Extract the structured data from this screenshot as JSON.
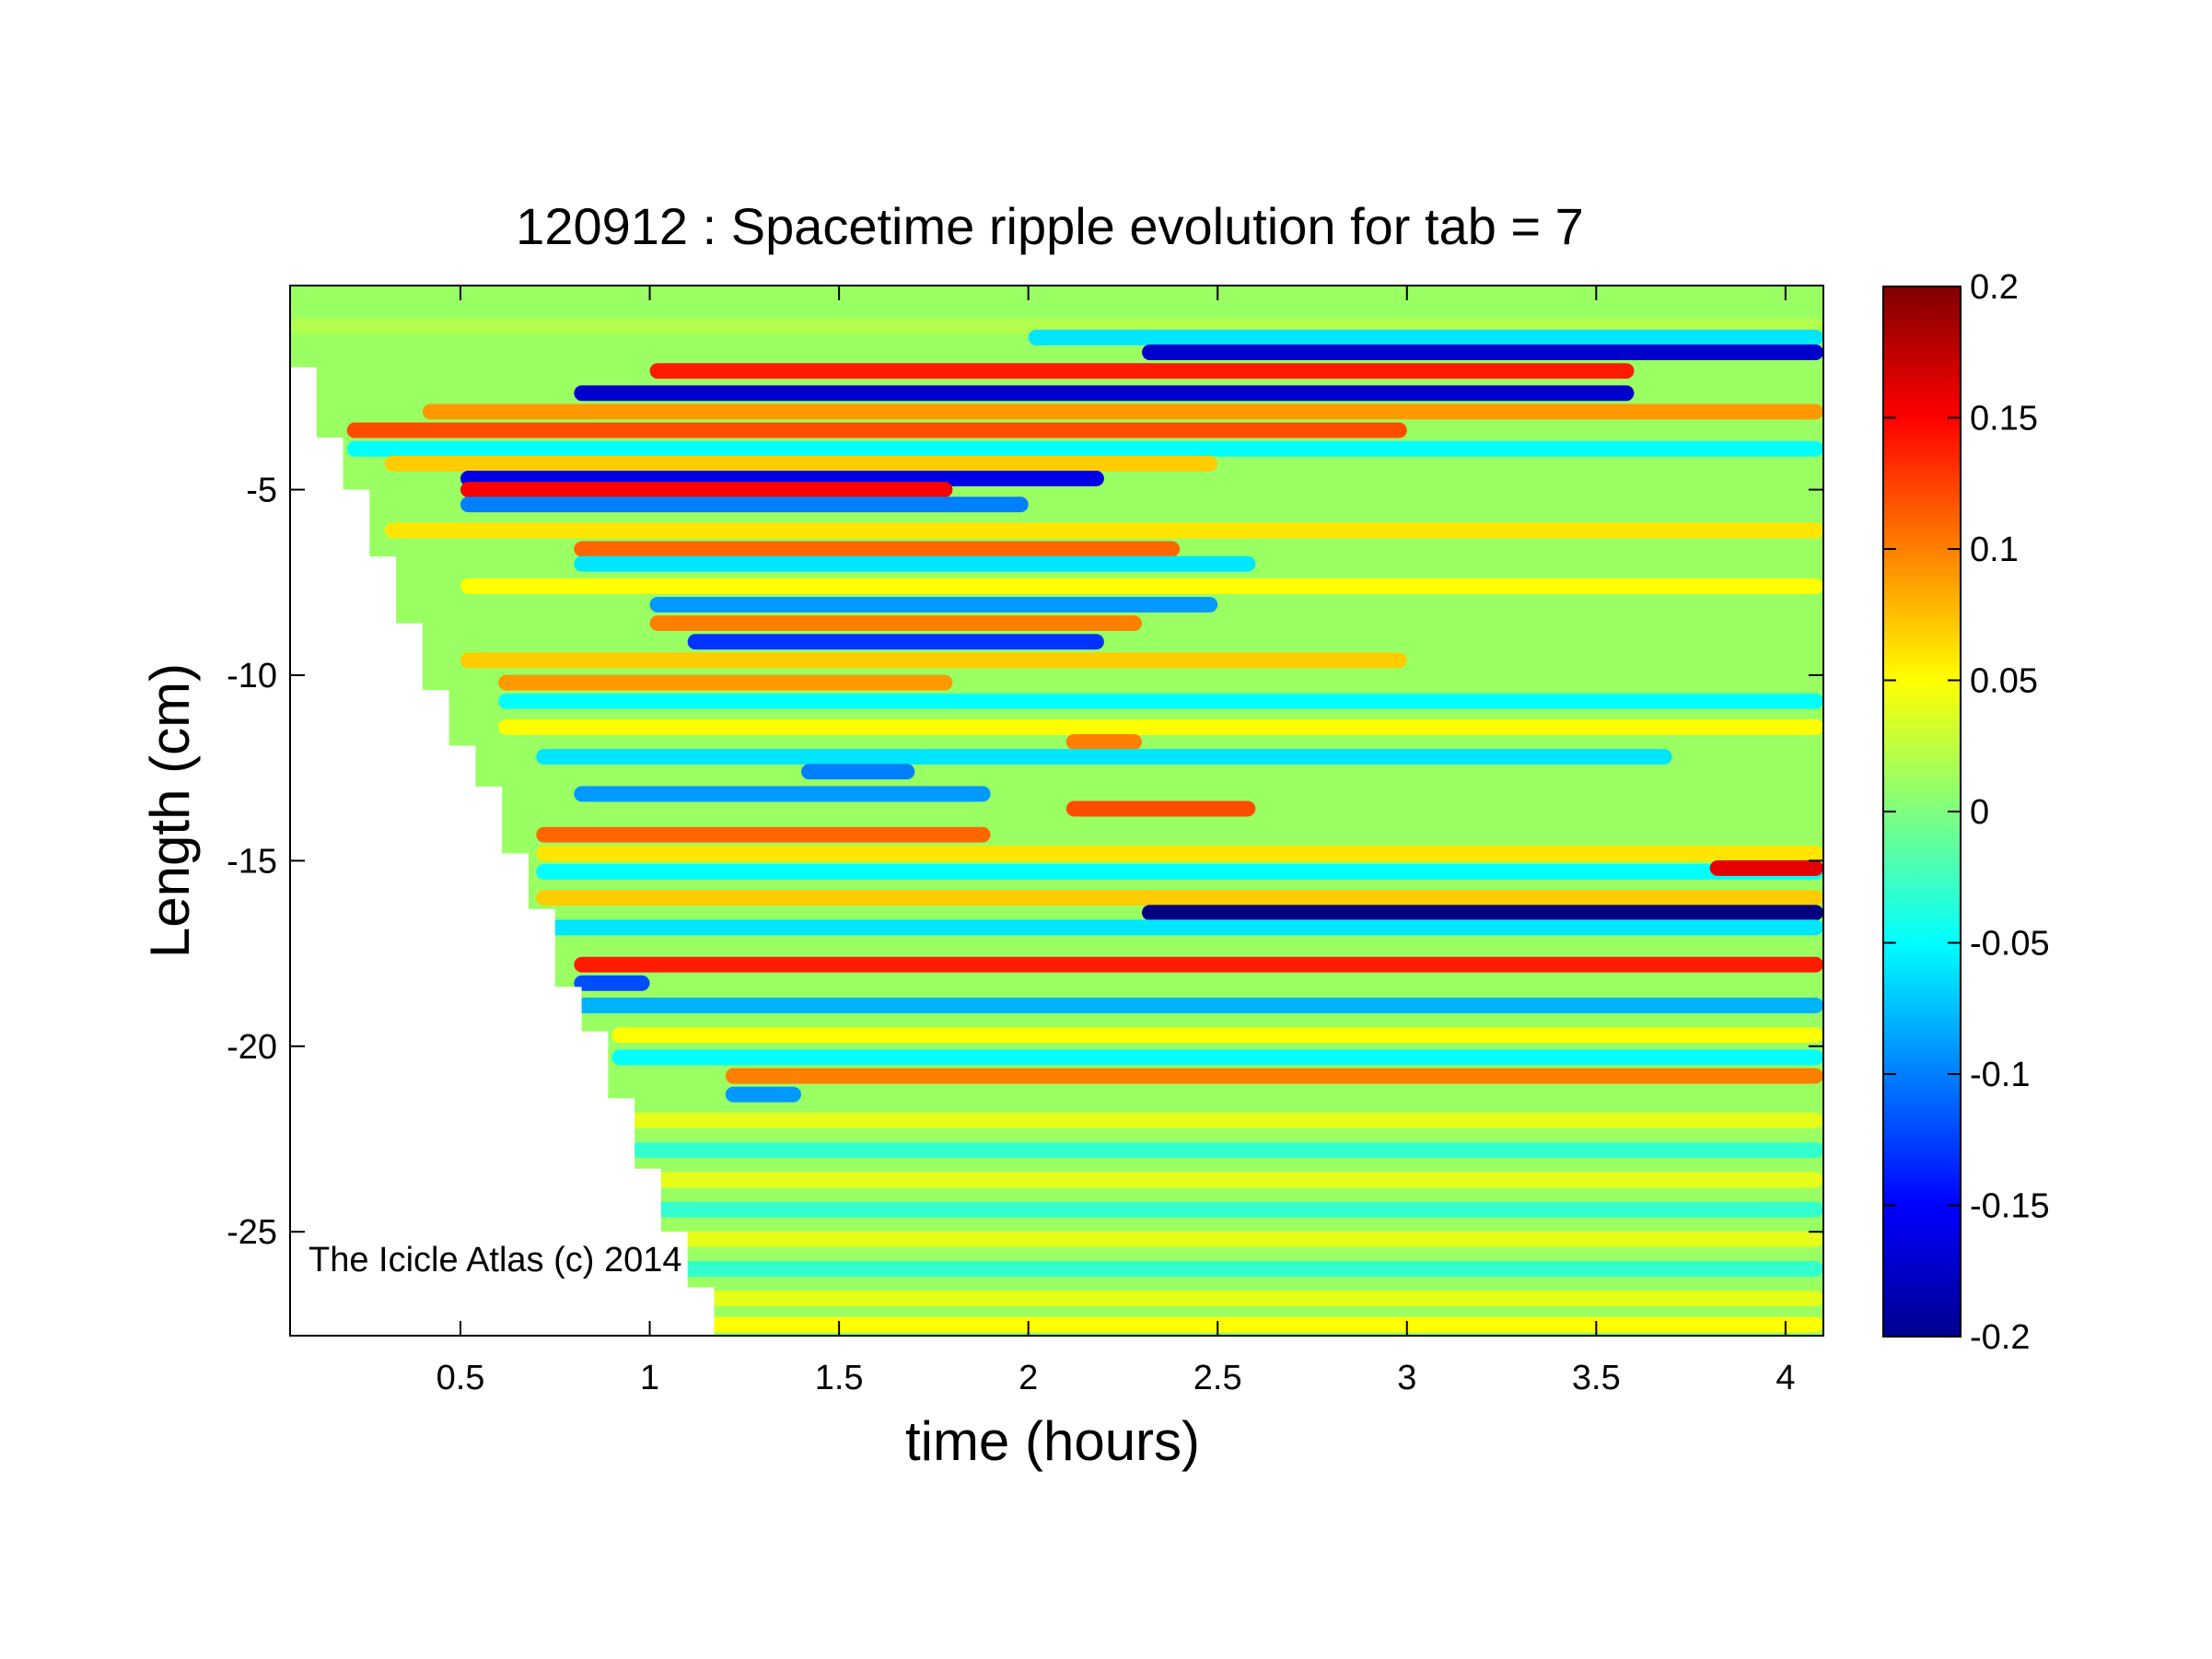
{
  "chart_data": {
    "type": "heatmap",
    "title": "120912 : Spacetime ripple evolution for tab = 7",
    "xlabel": "time (hours)",
    "ylabel": "Length (cm)",
    "xlim": [
      0.05,
      4.1
    ],
    "ylim": [
      -27.8,
      0.5
    ],
    "x_ticks": [
      0.5,
      1,
      1.5,
      2,
      2.5,
      3,
      3.5,
      4
    ],
    "x_tick_labels": [
      "0.5",
      "1",
      "1.5",
      "2",
      "2.5",
      "3",
      "3.5",
      "4"
    ],
    "y_ticks": [
      -5,
      -10,
      -15,
      -20,
      -25
    ],
    "y_tick_labels": [
      "-5",
      "-10",
      "-15",
      "-20",
      "-25"
    ],
    "colorbar": {
      "colormap": "jet",
      "clim": [
        -0.2,
        0.2
      ],
      "ticks": [
        0.2,
        0.15,
        0.1,
        0.05,
        0,
        -0.05,
        -0.1,
        -0.15,
        -0.2
      ],
      "tick_labels": [
        "0.2",
        "0.15",
        "0.1",
        "0.05",
        "0",
        "-0.05",
        "-0.1",
        "-0.15",
        "-0.2"
      ]
    },
    "data_boundary": {
      "description_note": "",
      "times": [
        0.05,
        0.12,
        0.19,
        0.26,
        0.33,
        0.4,
        0.47,
        0.54,
        0.61,
        0.68,
        0.75,
        0.82,
        0.89,
        0.96,
        1.03,
        1.1,
        1.17
      ],
      "min_length": [
        -1.7,
        -3.6,
        -5.0,
        -6.8,
        -8.6,
        -10.4,
        -11.9,
        -13.0,
        -14.8,
        -16.3,
        -18.4,
        -19.6,
        -21.4,
        -23.3,
        -25.0,
        -26.5,
        -27.8
      ]
    },
    "bands": [
      {
        "y": -0.6,
        "amp": 0.02,
        "t0": 0.05,
        "t1": 4.1
      },
      {
        "y": -0.9,
        "amp": -0.06,
        "t0": 2.0,
        "t1": 4.1
      },
      {
        "y": -1.3,
        "amp": -0.17,
        "t0": 2.3,
        "t1": 4.1
      },
      {
        "y": -1.8,
        "amp": 0.14,
        "t0": 1.0,
        "t1": 3.6
      },
      {
        "y": -2.4,
        "amp": -0.17,
        "t0": 0.8,
        "t1": 3.6
      },
      {
        "y": -2.9,
        "amp": 0.09,
        "t0": 0.4,
        "t1": 4.1
      },
      {
        "y": -3.4,
        "amp": 0.12,
        "t0": 0.2,
        "t1": 3.0
      },
      {
        "y": -3.9,
        "amp": -0.05,
        "t0": 0.2,
        "t1": 4.1
      },
      {
        "y": -4.3,
        "amp": 0.07,
        "t0": 0.3,
        "t1": 2.5
      },
      {
        "y": -4.7,
        "amp": -0.16,
        "t0": 0.5,
        "t1": 2.2
      },
      {
        "y": -5.0,
        "amp": 0.15,
        "t0": 0.5,
        "t1": 1.8
      },
      {
        "y": -5.4,
        "amp": -0.1,
        "t0": 0.5,
        "t1": 2.0
      },
      {
        "y": -6.1,
        "amp": 0.06,
        "t0": 0.3,
        "t1": 4.1
      },
      {
        "y": -6.6,
        "amp": 0.11,
        "t0": 0.8,
        "t1": 2.4
      },
      {
        "y": -7.0,
        "amp": -0.06,
        "t0": 0.8,
        "t1": 2.6
      },
      {
        "y": -7.6,
        "amp": 0.05,
        "t0": 0.5,
        "t1": 4.1
      },
      {
        "y": -8.1,
        "amp": -0.09,
        "t0": 1.0,
        "t1": 2.5
      },
      {
        "y": -8.6,
        "amp": 0.1,
        "t0": 1.0,
        "t1": 2.3
      },
      {
        "y": -9.1,
        "amp": -0.13,
        "t0": 1.1,
        "t1": 2.2
      },
      {
        "y": -9.6,
        "amp": 0.07,
        "t0": 0.5,
        "t1": 3.0
      },
      {
        "y": -10.2,
        "amp": 0.09,
        "t0": 0.6,
        "t1": 1.8
      },
      {
        "y": -10.7,
        "amp": -0.05,
        "t0": 0.6,
        "t1": 4.1
      },
      {
        "y": -11.4,
        "amp": 0.05,
        "t0": 0.6,
        "t1": 4.1
      },
      {
        "y": -11.8,
        "amp": 0.1,
        "t0": 2.1,
        "t1": 2.3
      },
      {
        "y": -12.2,
        "amp": -0.06,
        "t0": 0.7,
        "t1": 3.7
      },
      {
        "y": -12.6,
        "amp": -0.1,
        "t0": 1.4,
        "t1": 1.7
      },
      {
        "y": -13.2,
        "amp": -0.09,
        "t0": 0.8,
        "t1": 1.9
      },
      {
        "y": -13.6,
        "amp": 0.12,
        "t0": 2.1,
        "t1": 2.6
      },
      {
        "y": -14.3,
        "amp": 0.11,
        "t0": 0.7,
        "t1": 1.9
      },
      {
        "y": -14.8,
        "amp": 0.06,
        "t0": 0.7,
        "t1": 4.1
      },
      {
        "y": -15.3,
        "amp": -0.05,
        "t0": 0.7,
        "t1": 4.1
      },
      {
        "y": -15.2,
        "amp": 0.16,
        "t0": 3.8,
        "t1": 4.1
      },
      {
        "y": -16.0,
        "amp": 0.07,
        "t0": 0.7,
        "t1": 4.1
      },
      {
        "y": -16.4,
        "amp": -0.2,
        "t0": 2.3,
        "t1": 4.1
      },
      {
        "y": -16.8,
        "amp": -0.06,
        "t0": 0.7,
        "t1": 4.1
      },
      {
        "y": -17.8,
        "amp": 0.14,
        "t0": 0.8,
        "t1": 4.1
      },
      {
        "y": -18.3,
        "amp": -0.12,
        "t0": 0.8,
        "t1": 1.0
      },
      {
        "y": -18.9,
        "amp": -0.08,
        "t0": 0.8,
        "t1": 4.1
      },
      {
        "y": -19.7,
        "amp": 0.05,
        "t0": 0.9,
        "t1": 4.1
      },
      {
        "y": -20.3,
        "amp": -0.05,
        "t0": 0.9,
        "t1": 4.1
      },
      {
        "y": -20.8,
        "amp": 0.1,
        "t0": 1.2,
        "t1": 4.1
      },
      {
        "y": -21.3,
        "amp": -0.09,
        "t0": 1.2,
        "t1": 1.4
      },
      {
        "y": -22.0,
        "amp": 0.04,
        "t0": 0.9,
        "t1": 4.1
      },
      {
        "y": -22.8,
        "amp": -0.03,
        "t0": 0.9,
        "t1": 4.1
      },
      {
        "y": -23.6,
        "amp": 0.04,
        "t0": 0.9,
        "t1": 4.1
      },
      {
        "y": -24.4,
        "amp": -0.03,
        "t0": 1.0,
        "t1": 4.1
      },
      {
        "y": -25.2,
        "amp": 0.04,
        "t0": 1.0,
        "t1": 4.1
      },
      {
        "y": -26.0,
        "amp": -0.03,
        "t0": 1.0,
        "t1": 4.1
      },
      {
        "y": -26.8,
        "amp": 0.04,
        "t0": 1.1,
        "t1": 4.1
      },
      {
        "y": -27.5,
        "amp": 0.05,
        "t0": 1.1,
        "t1": 4.1
      }
    ]
  },
  "watermark": "The Icicle Atlas (c) 2014"
}
